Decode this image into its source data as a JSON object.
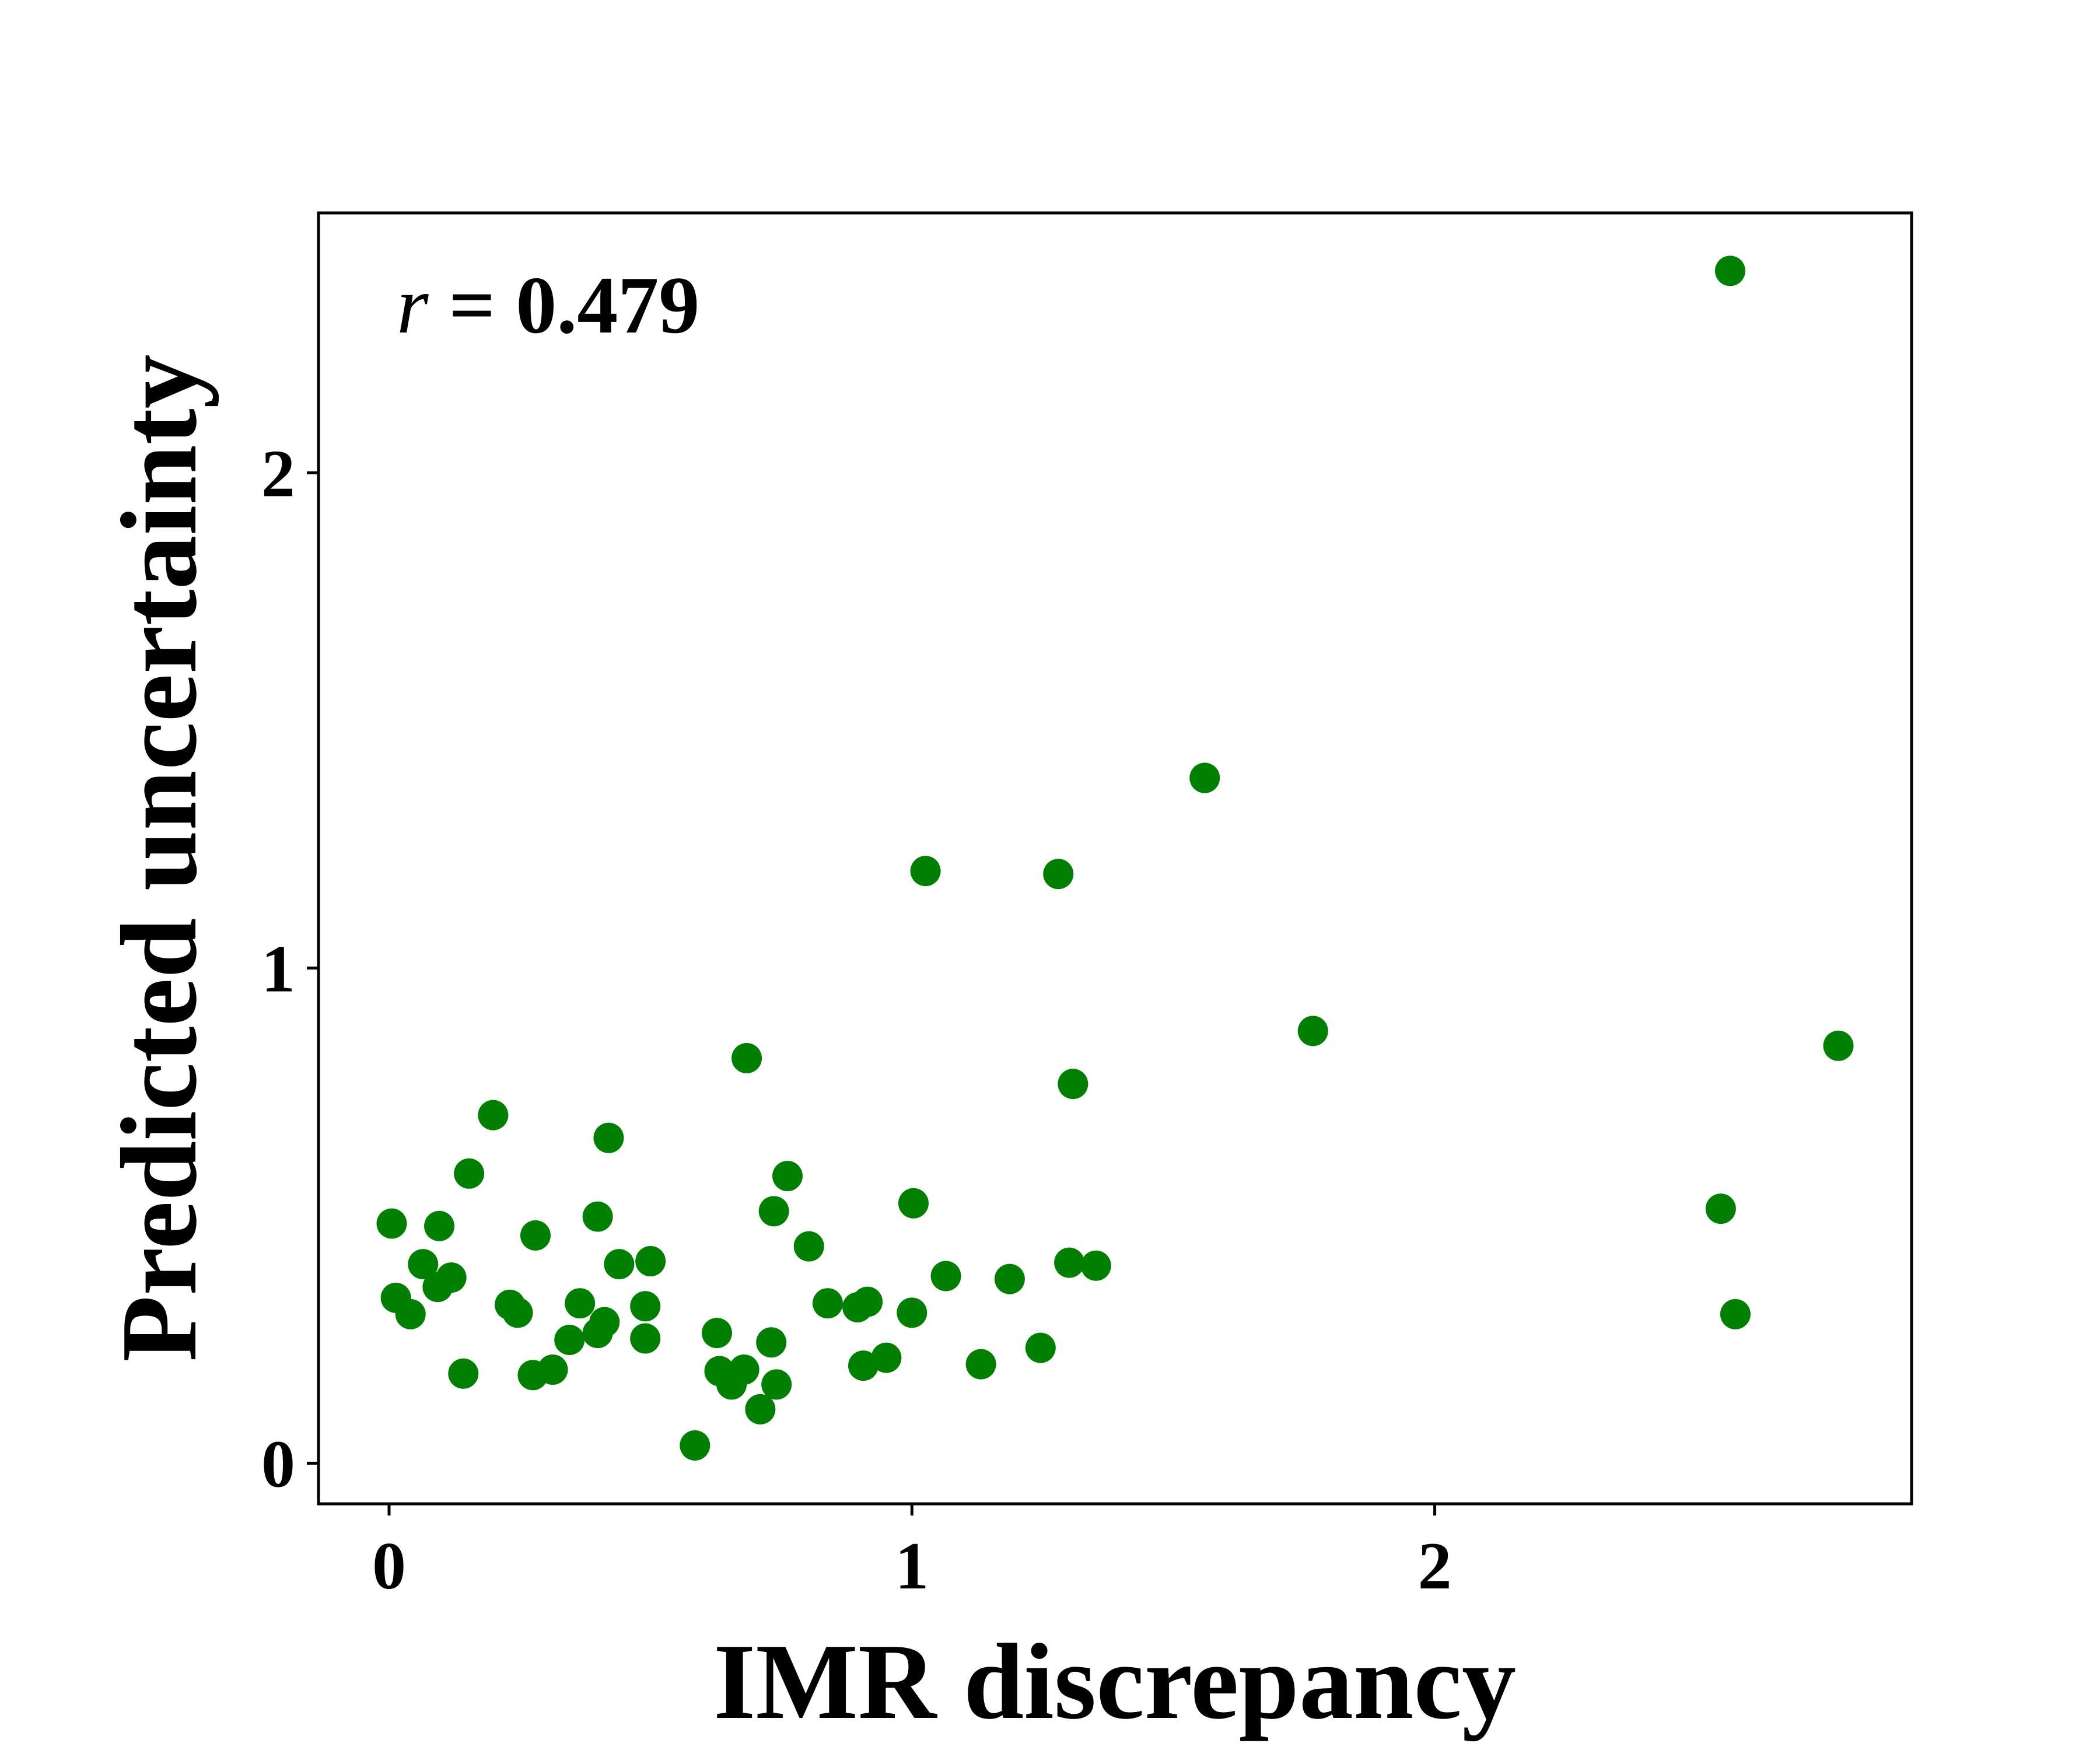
{
  "chart_data": {
    "type": "scatter",
    "xlabel": "IMR discrepancy",
    "ylabel": "Predicted uncertainty",
    "annotation": {
      "variable": "r",
      "text": "= 0.479"
    },
    "color": "#008000",
    "xlim": [
      -0.135,
      2.912
    ],
    "ylim": [
      -0.082,
      2.525
    ],
    "xticks": [
      0,
      1,
      2
    ],
    "yticks": [
      0,
      1,
      2
    ],
    "x": [
      2.565,
      1.56,
      1.026,
      1.28,
      1.767,
      2.772,
      0.684,
      1.308,
      0.199,
      0.42,
      0.153,
      0.762,
      1.003,
      2.547,
      0.736,
      0.399,
      0.005,
      0.096,
      0.28,
      0.803,
      0.5,
      0.44,
      1.301,
      1.352,
      0.065,
      0.119,
      1.065,
      1.187,
      0.093,
      0.013,
      0.231,
      0.365,
      0.839,
      0.915,
      0.896,
      0.49,
      0.041,
      0.246,
      1.0,
      2.575,
      0.412,
      0.627,
      0.399,
      0.345,
      0.49,
      0.731,
      1.246,
      0.951,
      0.907,
      1.132,
      0.313,
      0.275,
      0.142,
      0.632,
      0.679,
      0.655,
      0.741,
      0.71,
      0.585
    ],
    "values": [
      2.408,
      1.384,
      1.196,
      1.19,
      0.873,
      0.843,
      0.818,
      0.766,
      0.703,
      0.657,
      0.585,
      0.58,
      0.525,
      0.514,
      0.509,
      0.498,
      0.484,
      0.479,
      0.46,
      0.438,
      0.408,
      0.402,
      0.405,
      0.399,
      0.402,
      0.375,
      0.378,
      0.372,
      0.356,
      0.334,
      0.32,
      0.323,
      0.323,
      0.326,
      0.315,
      0.317,
      0.301,
      0.304,
      0.304,
      0.301,
      0.285,
      0.263,
      0.263,
      0.249,
      0.252,
      0.244,
      0.233,
      0.213,
      0.197,
      0.2,
      0.189,
      0.178,
      0.181,
      0.186,
      0.189,
      0.159,
      0.159,
      0.109,
      0.036
    ]
  }
}
